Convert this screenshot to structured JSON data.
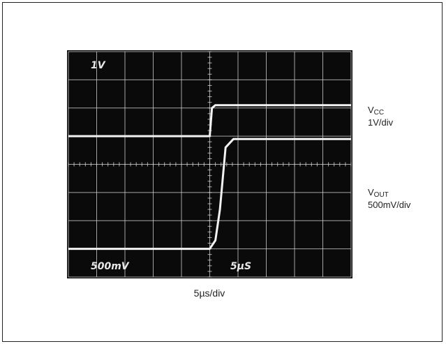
{
  "chart_data": {
    "type": "line",
    "title": "",
    "grid": true,
    "divisions": {
      "x": 10,
      "y": 8
    },
    "screen_labels": {
      "top_left": "1V",
      "bottom_left": "500mV",
      "bottom_center": "5µS"
    },
    "x_unit": "µs",
    "xlim": [
      -25,
      25
    ],
    "series": [
      {
        "name": "VCC 1V/div",
        "x": [
          -25,
          0,
          0.4,
          1,
          25
        ],
        "y_div": [
          5.0,
          5.0,
          6.0,
          6.1,
          6.1
        ]
      },
      {
        "name": "VOUT 500mV/div",
        "x": [
          -25,
          0,
          1,
          1.8,
          2.8,
          4.2,
          25
        ],
        "y_div": [
          1.0,
          1.0,
          1.3,
          2.4,
          4.6,
          4.9,
          4.9
        ]
      }
    ]
  },
  "labels": {
    "vcc_main": "V",
    "vcc_sub": "CC",
    "vcc_scale": "1V/div",
    "vout_main": "V",
    "vout_sub": "OUT",
    "vout_scale": "500mV/div",
    "timebase": "5µs/div"
  },
  "colors": {
    "screen": "#0a0a0a",
    "grid": "#d8d8d8",
    "trace": "#f2f2f2"
  }
}
